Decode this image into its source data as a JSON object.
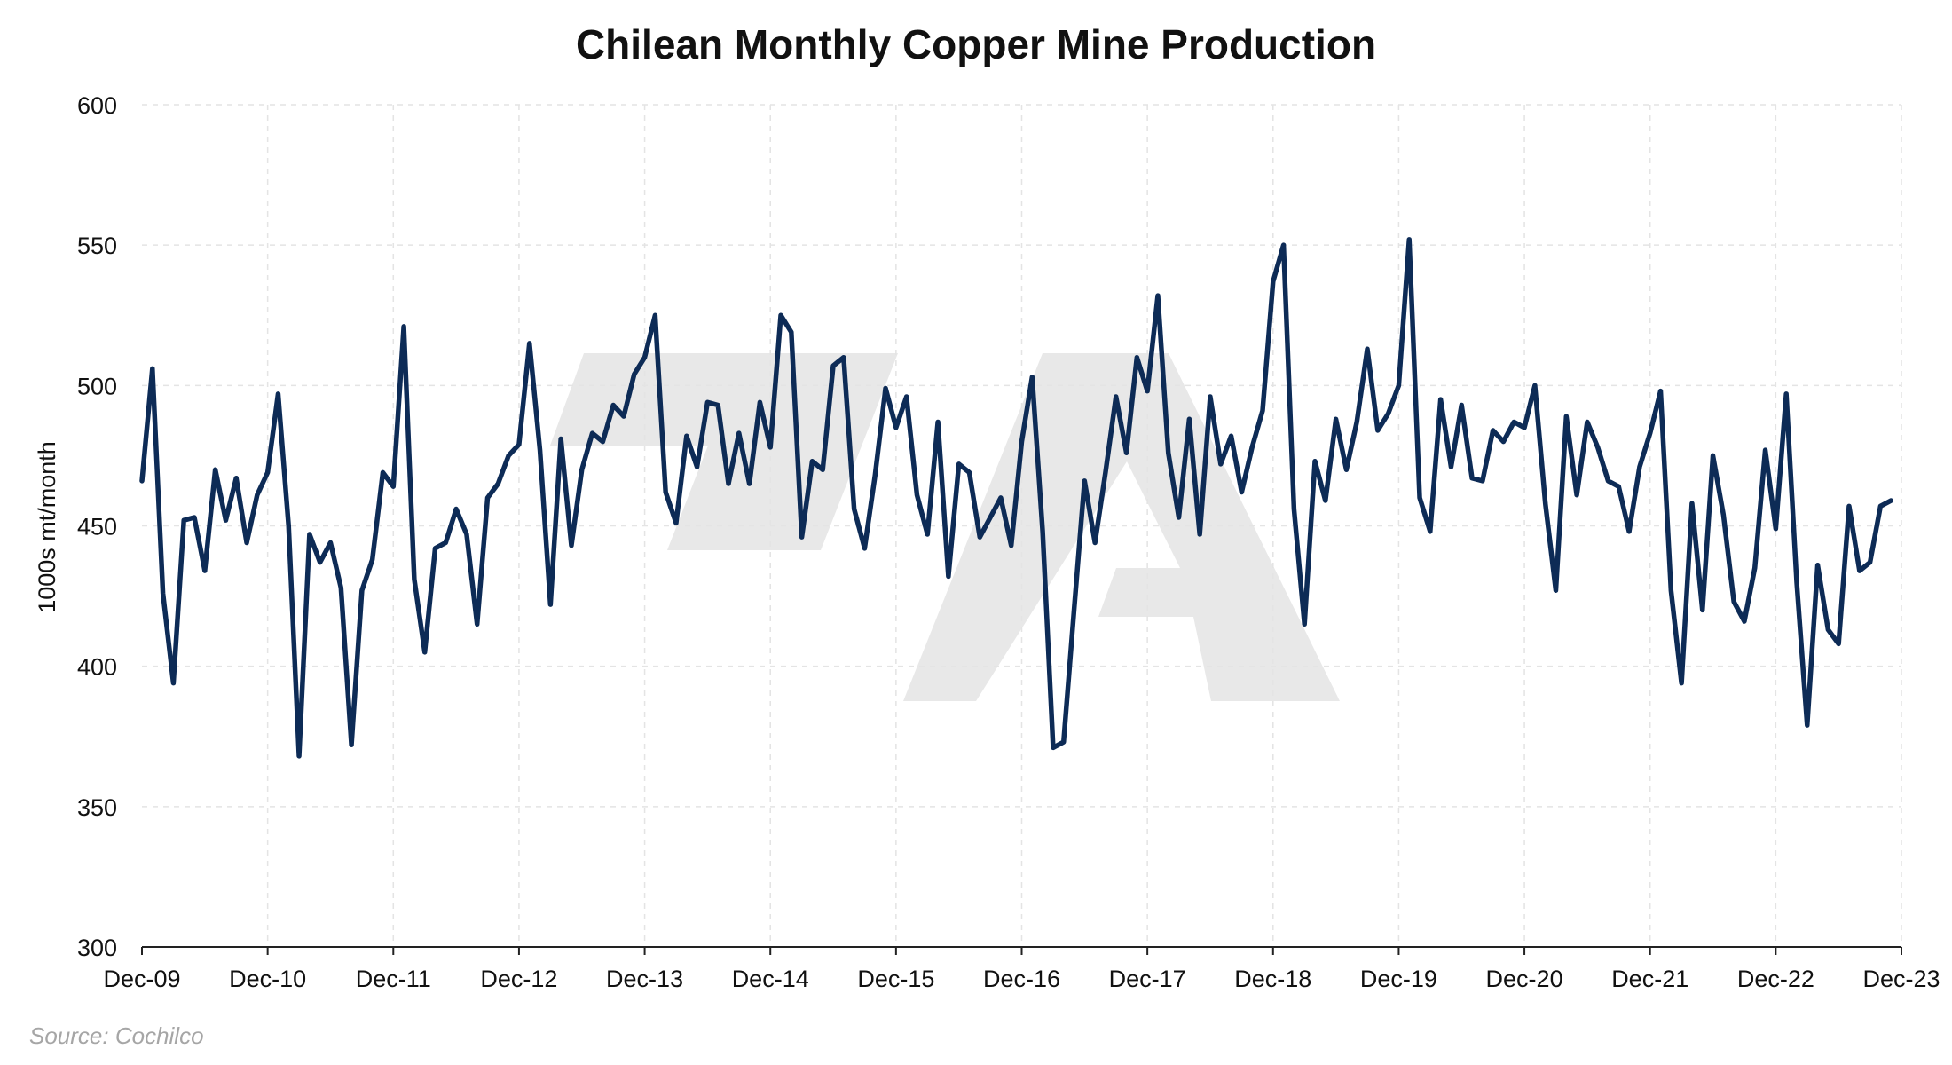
{
  "chart_data": {
    "type": "line",
    "title": "Chilean Monthly Copper Mine Production",
    "xlabel": "",
    "ylabel": "1000s mt/month",
    "source": "Source: Cochilco",
    "ylim": [
      300,
      600
    ],
    "yticks": [
      300,
      350,
      400,
      450,
      500,
      550,
      600
    ],
    "x_tick_labels": [
      "Dec-09",
      "Dec-10",
      "Dec-11",
      "Dec-12",
      "Dec-13",
      "Dec-14",
      "Dec-15",
      "Dec-16",
      "Dec-17",
      "Dec-18",
      "Dec-19",
      "Dec-20",
      "Dec-21",
      "Dec-22",
      "Dec-23"
    ],
    "x_start": "Dec-09",
    "x_end": "Dec-23",
    "grid": true,
    "series_color": "#0d2b56",
    "gridline_color": "#e4e4e4",
    "watermark_color": "#e8e8e8",
    "series": [
      {
        "values": [
          466,
          506,
          426,
          394,
          452,
          453,
          434,
          470,
          452,
          467,
          444,
          461,
          469,
          497,
          450,
          368,
          447,
          437,
          444,
          428,
          372,
          427,
          438,
          469,
          464,
          521,
          431,
          405,
          442,
          444,
          456,
          447,
          415,
          460,
          465,
          475,
          479,
          515,
          477,
          422,
          481,
          443,
          470,
          483,
          480,
          493,
          489,
          504,
          510,
          525,
          462,
          451,
          482,
          471,
          494,
          493,
          465,
          483,
          465,
          494,
          478,
          525,
          519,
          446,
          473,
          470,
          507,
          510,
          456,
          442,
          468,
          499,
          485,
          496,
          461,
          447,
          487,
          432,
          472,
          469,
          446,
          453,
          460,
          443,
          480,
          503,
          448,
          371,
          373,
          420,
          466,
          444,
          469,
          496,
          476,
          510,
          498,
          532,
          476,
          453,
          488,
          447,
          496,
          472,
          482,
          462,
          478,
          491,
          537,
          550,
          456,
          415,
          473,
          459,
          488,
          470,
          487,
          513,
          484,
          490,
          500,
          552,
          460,
          448,
          495,
          471,
          493,
          467,
          466,
          484,
          480,
          487,
          485,
          500,
          458,
          427,
          489,
          461,
          487,
          478,
          466,
          464,
          448,
          471,
          483,
          498,
          427,
          394,
          458,
          420,
          475,
          454,
          423,
          416,
          435,
          477,
          449,
          497,
          430,
          379,
          436,
          413,
          408,
          457,
          434,
          437,
          457,
          459
        ]
      }
    ]
  }
}
